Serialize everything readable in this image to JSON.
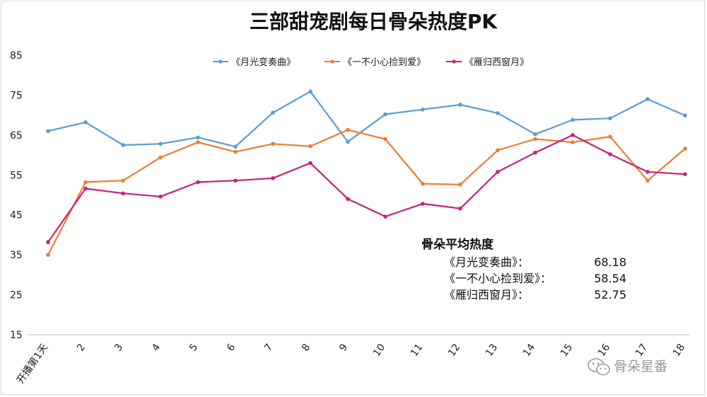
{
  "chart_data": {
    "type": "line",
    "title": "三部甜宠剧每日骨朵热度PK",
    "categories": [
      "开播第1天",
      "2",
      "3",
      "4",
      "5",
      "6",
      "7",
      "8",
      "9",
      "10",
      "11",
      "12",
      "13",
      "14",
      "15",
      "16",
      "17",
      "18"
    ],
    "yticks": [
      "85",
      "75",
      "65",
      "55",
      "45",
      "35",
      "25",
      "15"
    ],
    "ylim": [
      15,
      85
    ],
    "grid": false,
    "legend_position": "top",
    "series": [
      {
        "name": "《月光变奏曲》",
        "color": "#5b9bd5",
        "values": [
          66.0,
          68.2,
          62.5,
          62.8,
          64.4,
          62.1,
          70.6,
          75.9,
          63.3,
          70.2,
          71.4,
          72.6,
          70.5,
          65.2,
          68.8,
          69.2,
          74.0,
          69.9
        ]
      },
      {
        "name": "《一不小心捡到爱》",
        "color": "#ed7d31",
        "values": [
          35.0,
          53.2,
          53.6,
          59.4,
          63.2,
          60.8,
          62.8,
          62.2,
          66.3,
          64.0,
          52.8,
          52.6,
          61.2,
          64.0,
          63.2,
          64.6,
          53.6,
          61.6
        ]
      },
      {
        "name": "《雁归西窗月》",
        "color": "#c8217a",
        "values": [
          38.2,
          51.6,
          50.4,
          49.6,
          53.2,
          53.6,
          54.2,
          58.0,
          49.0,
          44.6,
          47.8,
          46.6,
          55.8,
          60.6,
          65.0,
          60.2,
          55.8,
          55.2
        ]
      }
    ],
    "annotation": {
      "title": "骨朵平均热度",
      "rows": [
        {
          "label": "《月光变奏曲》：",
          "value": "68.18"
        },
        {
          "label": "《一不小心捡到爱》：",
          "value": "58.54"
        },
        {
          "label": "《雁归西窗月》：",
          "value": "52.75"
        }
      ]
    }
  },
  "watermark": {
    "text": "骨朵星番",
    "icon": "wechat-icon"
  }
}
